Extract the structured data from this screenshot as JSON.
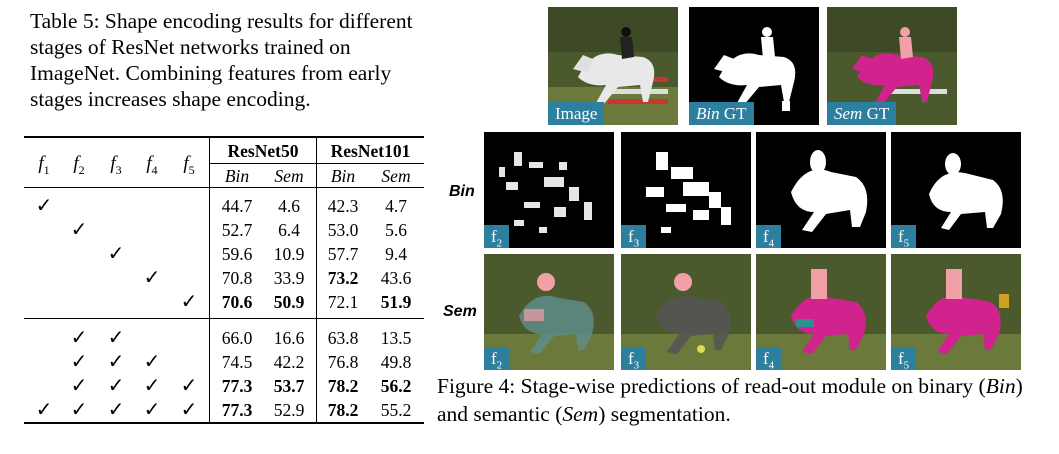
{
  "table_caption": "Table 5: Shape encoding results for different stages of ResNet networks trained on ImageNet. Combining features from early stages increases shape encoding.",
  "table": {
    "stage_headers": [
      "1",
      "2",
      "3",
      "4",
      "5"
    ],
    "groups": [
      "ResNet50",
      "ResNet101"
    ],
    "subheaders": [
      "Bin",
      "Sem",
      "Bin",
      "Sem"
    ],
    "check_mark": "✓",
    "rows": [
      {
        "checks": [
          1,
          0,
          0,
          0,
          0
        ],
        "values": [
          "44.7",
          "4.6",
          "42.3",
          "4.7"
        ],
        "bold": [
          0,
          0,
          0,
          0
        ]
      },
      {
        "checks": [
          0,
          1,
          0,
          0,
          0
        ],
        "values": [
          "52.7",
          "6.4",
          "53.0",
          "5.6"
        ],
        "bold": [
          0,
          0,
          0,
          0
        ]
      },
      {
        "checks": [
          0,
          0,
          1,
          0,
          0
        ],
        "values": [
          "59.6",
          "10.9",
          "57.7",
          "9.4"
        ],
        "bold": [
          0,
          0,
          0,
          0
        ]
      },
      {
        "checks": [
          0,
          0,
          0,
          1,
          0
        ],
        "values": [
          "70.8",
          "33.9",
          "73.2",
          "43.6"
        ],
        "bold": [
          0,
          0,
          1,
          0
        ]
      },
      {
        "checks": [
          0,
          0,
          0,
          0,
          1
        ],
        "values": [
          "70.6",
          "50.9",
          "72.1",
          "51.9"
        ],
        "bold": [
          1,
          1,
          0,
          1
        ]
      },
      {
        "checks": [
          0,
          1,
          1,
          0,
          0
        ],
        "values": [
          "66.0",
          "16.6",
          "63.8",
          "13.5"
        ],
        "bold": [
          0,
          0,
          0,
          0
        ]
      },
      {
        "checks": [
          0,
          1,
          1,
          1,
          0
        ],
        "values": [
          "74.5",
          "42.2",
          "76.8",
          "49.8"
        ],
        "bold": [
          0,
          0,
          0,
          0
        ]
      },
      {
        "checks": [
          0,
          1,
          1,
          1,
          1
        ],
        "values": [
          "77.3",
          "53.7",
          "78.2",
          "56.2"
        ],
        "bold": [
          1,
          1,
          1,
          1
        ]
      },
      {
        "checks": [
          1,
          1,
          1,
          1,
          1
        ],
        "values": [
          "77.3",
          "52.9",
          "78.2",
          "55.2"
        ],
        "bold": [
          1,
          0,
          1,
          0
        ]
      }
    ]
  },
  "figure": {
    "top_labels": {
      "image": "Image",
      "bin_gt_italic": "Bin",
      "sem_gt_italic": "Sem",
      "gt_suffix": " GT"
    },
    "row_labels": {
      "bin": "Bin",
      "sem": "Sem"
    },
    "stage_tags": [
      "2",
      "3",
      "4",
      "5"
    ],
    "colors": {
      "tag": "#2d7fa0",
      "mask_pink": "#d0238e",
      "rider_pink": "#f2a0a8"
    }
  },
  "figure_caption": {
    "prefix": "Figure 4:  Stage-wise predictions of read-out module on binary (",
    "bin": "Bin",
    "middle": ") and semantic (",
    "sem": "Sem",
    "suffix": ") segmentation."
  }
}
